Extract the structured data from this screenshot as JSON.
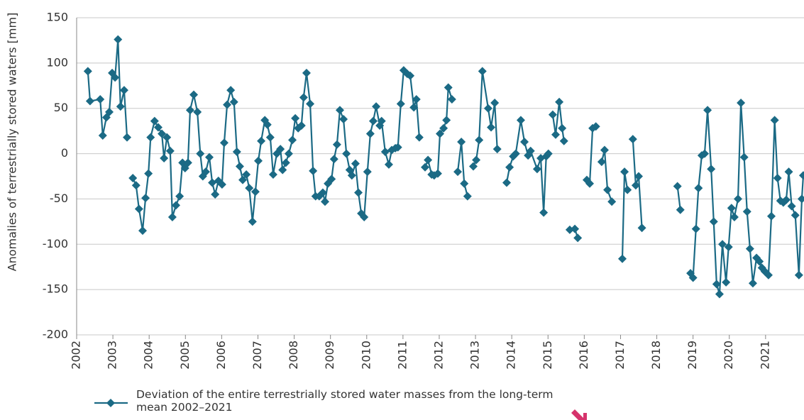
{
  "chart_data": {
    "type": "line",
    "y_label": "Anomalies of terrestrially stored waters [mm]",
    "xlim": [
      2002,
      2022.06
    ],
    "xticks": [
      2002,
      2003,
      2004,
      2005,
      2006,
      2007,
      2008,
      2009,
      2010,
      2011,
      2012,
      2013,
      2014,
      2015,
      2016,
      2017,
      2018,
      2019,
      2020,
      2021
    ],
    "ylim": [
      -200,
      150
    ],
    "yticks": [
      -200,
      -150,
      -100,
      -50,
      0,
      50,
      100,
      150
    ],
    "grid": true,
    "x": [
      2002.31,
      2002.37,
      2002.65,
      2002.72,
      2002.82,
      2002.9,
      2002.98,
      2003.06,
      2003.14,
      2003.21,
      2003.31,
      2003.39,
      null,
      2003.55,
      2003.64,
      2003.72,
      2003.82,
      2003.9,
      2003.98,
      2004.04,
      2004.15,
      2004.25,
      2004.35,
      2004.41,
      2004.49,
      2004.58,
      2004.64,
      2004.74,
      2004.84,
      2004.92,
      2004.99,
      2005.07,
      2005.13,
      2005.23,
      2005.33,
      2005.41,
      2005.48,
      2005.56,
      2005.66,
      2005.74,
      2005.82,
      2005.91,
      2006.01,
      2006.07,
      2006.15,
      2006.25,
      2006.34,
      2006.42,
      2006.5,
      2006.58,
      2006.68,
      2006.76,
      2006.85,
      2006.93,
      2007.01,
      2007.09,
      2007.19,
      2007.26,
      2007.34,
      2007.42,
      2007.52,
      2007.62,
      2007.68,
      2007.77,
      2007.85,
      2007.95,
      2008.03,
      2008.11,
      2008.2,
      2008.26,
      2008.34,
      2008.44,
      2008.52,
      2008.59,
      2008.69,
      2008.79,
      2008.85,
      2008.93,
      2009.03,
      2009.1,
      2009.18,
      2009.26,
      2009.36,
      2009.44,
      2009.53,
      2009.59,
      2009.69,
      2009.77,
      2009.85,
      2009.93,
      2010.02,
      2010.1,
      2010.18,
      2010.26,
      2010.36,
      2010.41,
      2010.51,
      2010.61,
      2010.69,
      2010.79,
      2010.86,
      2010.94,
      2011.02,
      2011.12,
      2011.2,
      2011.3,
      2011.37,
      2011.45,
      null,
      2011.61,
      2011.69,
      2011.79,
      2011.86,
      2011.96,
      2012.02,
      2012.12,
      2012.2,
      2012.25,
      2012.35,
      null,
      2012.51,
      2012.61,
      2012.69,
      2012.78,
      null,
      2012.94,
      2013.02,
      2013.1,
      2013.19,
      2013.35,
      2013.43,
      2013.53,
      2013.6,
      null,
      2013.86,
      2013.94,
      2014.04,
      2014.11,
      2014.25,
      2014.35,
      2014.45,
      2014.52,
      2014.7,
      2014.8,
      2014.88,
      2014.95,
      2015.01,
      null,
      2015.13,
      2015.21,
      2015.31,
      2015.39,
      2015.44,
      null,
      2015.6,
      2015.74,
      2015.82,
      null,
      2016.07,
      2016.15,
      2016.23,
      2016.32,
      null,
      2016.48,
      2016.56,
      2016.64,
      2016.76,
      null,
      2017.05,
      2017.11,
      2017.19,
      null,
      2017.34,
      2017.42,
      2017.5,
      2017.59,
      null,
      2018.57,
      2018.65,
      null,
      2018.93,
      2019.0,
      2019.08,
      2019.15,
      2019.24,
      2019.32,
      2019.4,
      2019.5,
      2019.57,
      2019.65,
      2019.73,
      2019.81,
      2019.91,
      2019.98,
      2020.06,
      2020.14,
      2020.24,
      2020.32,
      2020.41,
      2020.49,
      2020.57,
      2020.65,
      2020.75,
      2020.83,
      2020.9,
      2020.98,
      2021.08,
      2021.16,
      2021.25,
      2021.33,
      2021.41,
      2021.49,
      2021.57,
      2021.64,
      2021.72,
      2021.82,
      2021.92,
      2022.0,
      2022.04
    ],
    "series": [
      {
        "name": "Deviation of the entire terrestrially stored water masses from the long-term mean 2002–2021",
        "color": "#1b6a85",
        "values": [
          91,
          58,
          60,
          20,
          40,
          46,
          89,
          84,
          126,
          52,
          70,
          18,
          null,
          -27,
          -35,
          -61,
          -85,
          -49,
          -22,
          18,
          36,
          29,
          22,
          -5,
          18,
          3,
          -70,
          -57,
          -47,
          -10,
          -16,
          -10,
          48,
          65,
          46,
          0,
          -25,
          -20,
          -4,
          -32,
          -45,
          -30,
          -34,
          12,
          54,
          70,
          57,
          2,
          -14,
          -29,
          -23,
          -38,
          -75,
          -42,
          -8,
          14,
          37,
          32,
          18,
          -23,
          0,
          5,
          -18,
          -10,
          0,
          15,
          39,
          28,
          31,
          62,
          89,
          55,
          -19,
          -47,
          -47,
          -43,
          -53,
          -33,
          -28,
          -6,
          10,
          48,
          38,
          0,
          -18,
          -24,
          -11,
          -43,
          -66,
          -70,
          -20,
          22,
          36,
          52,
          31,
          36,
          2,
          -12,
          4,
          6,
          7,
          55,
          92,
          88,
          86,
          51,
          60,
          18,
          null,
          -15,
          -7,
          -23,
          -24,
          -22,
          22,
          28,
          37,
          73,
          60,
          null,
          -20,
          13,
          -33,
          -47,
          null,
          -14,
          -7,
          15,
          91,
          50,
          29,
          56,
          5,
          null,
          -32,
          -15,
          -3,
          0,
          37,
          13,
          -2,
          3,
          -17,
          -5,
          -65,
          -3,
          0,
          null,
          43,
          21,
          57,
          28,
          14,
          null,
          -84,
          -83,
          -93,
          null,
          -29,
          -33,
          28,
          30,
          null,
          -9,
          4,
          -40,
          -53,
          null,
          -116,
          -20,
          -40,
          null,
          16,
          -35,
          -25,
          -82,
          null,
          -36,
          -62,
          null,
          -132,
          -137,
          -83,
          -38,
          -2,
          0,
          48,
          -17,
          -75,
          -144,
          -155,
          -100,
          -142,
          -103,
          -60,
          -70,
          -50,
          56,
          -4,
          -64,
          -105,
          -143,
          -115,
          -119,
          -126,
          -130,
          -134,
          -69,
          37,
          -27,
          -52,
          -54,
          -51,
          -20,
          -58,
          -68,
          -134,
          -50,
          -24
        ]
      }
    ]
  }
}
